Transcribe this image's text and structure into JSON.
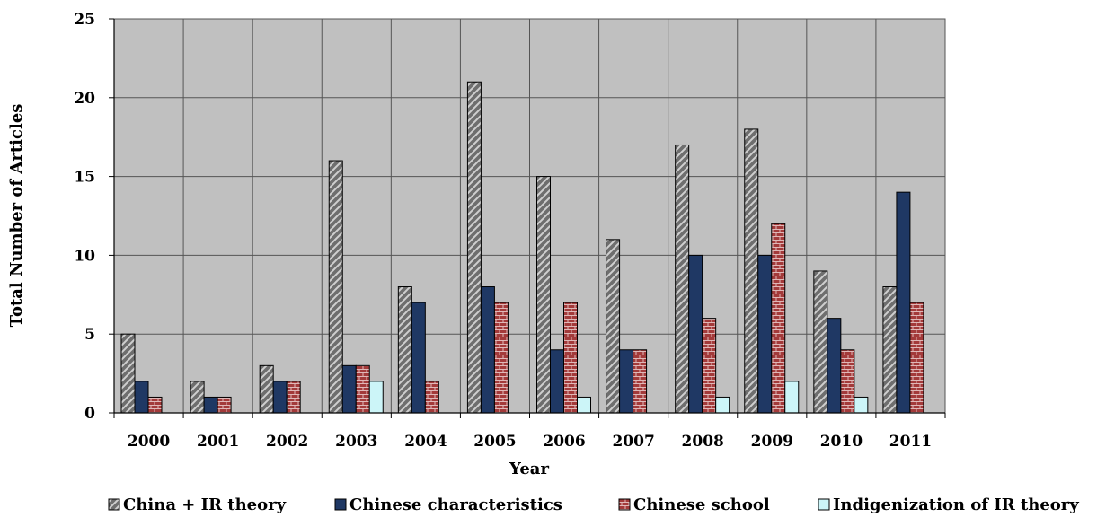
{
  "chart_data": {
    "type": "bar",
    "title": "",
    "xlabel": "Year",
    "ylabel": "Total Number of Articles",
    "ylim": [
      0,
      25
    ],
    "yticks": [
      0,
      5,
      10,
      15,
      20,
      25
    ],
    "grid": true,
    "legend_position": "bottom",
    "categories": [
      "2000",
      "2001",
      "2002",
      "2003",
      "2004",
      "2005",
      "2006",
      "2007",
      "2008",
      "2009",
      "2010",
      "2011"
    ],
    "series": [
      {
        "name": "China + IR theory",
        "values": [
          5,
          2,
          3,
          16,
          8,
          21,
          15,
          11,
          17,
          18,
          9,
          8
        ]
      },
      {
        "name": "Chinese characteristics",
        "values": [
          2,
          1,
          2,
          3,
          7,
          8,
          4,
          4,
          10,
          10,
          6,
          14
        ]
      },
      {
        "name": "Chinese school",
        "values": [
          1,
          1,
          2,
          3,
          2,
          7,
          7,
          4,
          6,
          12,
          4,
          7
        ]
      },
      {
        "name": "Indigenization of IR theory",
        "values": [
          0,
          0,
          0,
          2,
          0,
          0,
          1,
          0,
          1,
          2,
          1,
          0
        ]
      }
    ],
    "colors": {
      "plot_background": "#c0c0c0",
      "gridline": "#555555",
      "china_ir_theory": "#6e6e6e",
      "chinese_characteristics": "#1f3864",
      "chinese_school": "#a33a3a",
      "indigenization": "#ccf5f8"
    }
  }
}
